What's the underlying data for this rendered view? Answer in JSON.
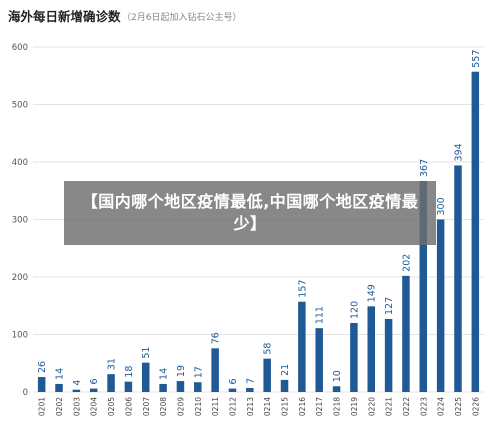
{
  "chart_data": {
    "type": "bar",
    "title": "海外每日新增确诊数",
    "subtitle": "（2月6日起加入钻石公主号）",
    "categories": [
      "0201",
      "0202",
      "0203",
      "0204",
      "0205",
      "0206",
      "0207",
      "0208",
      "0209",
      "0210",
      "0211",
      "0212",
      "0213",
      "0214",
      "0215",
      "0216",
      "0217",
      "0218",
      "0219",
      "0220",
      "0221",
      "0222",
      "0223",
      "0224",
      "0225",
      "0226"
    ],
    "values": [
      26,
      14,
      4,
      6,
      31,
      18,
      51,
      14,
      19,
      17,
      76,
      6,
      7,
      58,
      21,
      157,
      111,
      10,
      120,
      149,
      127,
      202,
      367,
      300,
      394,
      557
    ],
    "ylim": [
      0,
      600
    ],
    "yticks": [
      0,
      100,
      200,
      300,
      400,
      500,
      600
    ],
    "grid": true,
    "colors": {
      "bar": "#1f5a96",
      "grid": "#e3e3e3"
    }
  },
  "overlay": {
    "text": "【国内哪个地区疫情最低,中国哪个地区疫情最少】"
  }
}
